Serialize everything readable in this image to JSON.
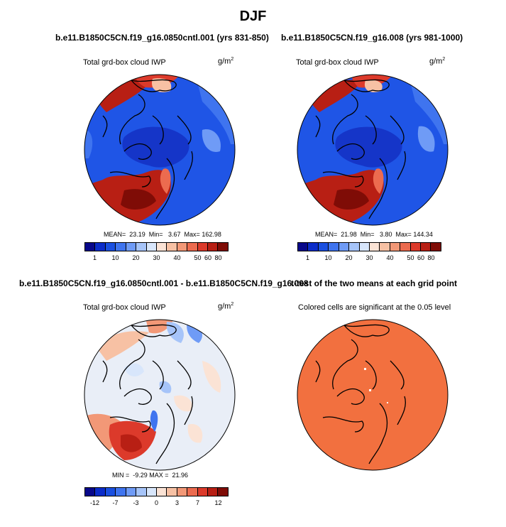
{
  "figure": {
    "title": "DJF"
  },
  "panels": {
    "top_left": {
      "header": "b.e11.B1850C5CN.f19_g16.0850cntl.001 (yrs 831-850)",
      "left_label": "Total grd-box cloud IWP",
      "unit": "g/m",
      "unit_sup": "2",
      "stats": "MEAN=  23.19  Min=   3.67  Max= 162.98"
    },
    "top_right": {
      "header": "b.e11.B1850C5CN.f19_g16.008 (yrs 981-1000)",
      "left_label": "Total grd-box cloud IWP",
      "unit": "g/m",
      "unit_sup": "2",
      "stats": "MEAN=  21.98  Min=   3.80  Max= 144.34"
    },
    "bottom_left": {
      "header": "b.e11.B1850C5CN.f19_g16.0850cntl.001 - b.e11.B1850C5CN.f19_g16.008",
      "left_label": "Total grd-box cloud IWP",
      "unit": "g/m",
      "unit_sup": "2",
      "stats": "MIN =  -9.29 MAX =  21.96"
    },
    "bottom_right": {
      "header": "t-test of the two means at each grid point",
      "center_label": "Colored cells are significant at the 0.05 level"
    }
  },
  "colorbars": {
    "iwp": {
      "colors": [
        "#08088a",
        "#0b2cc9",
        "#1a4fe0",
        "#3f74ef",
        "#6f9bf6",
        "#a6c4f9",
        "#d8e6fb",
        "#fbe3d5",
        "#f7c1a4",
        "#f29877",
        "#ec6b4f",
        "#dc3a2b",
        "#b81f14",
        "#7f0c06"
      ],
      "ticks": [
        "1",
        "10",
        "20",
        "30",
        "40",
        "50",
        "60",
        "80"
      ]
    },
    "diff": {
      "colors": [
        "#08088a",
        "#0b2cc9",
        "#1a4fe0",
        "#3f74ef",
        "#6f9bf6",
        "#a6c4f9",
        "#d8e6fb",
        "#fbe3d5",
        "#f7c1a4",
        "#f29877",
        "#ec6b4f",
        "#dc3a2b",
        "#b81f14",
        "#7f0c06"
      ],
      "ticks": [
        "-12",
        "-7",
        "-3",
        "0",
        "3",
        "7",
        "12"
      ]
    }
  },
  "colors": {
    "ocean_blue": "#1f55e6",
    "dark_blue": "#1535c8",
    "hot_red": "#b81f14",
    "mid_red": "#e45a3a",
    "pale": "#e9eef7",
    "ttest_orange": "#f2703f"
  }
}
